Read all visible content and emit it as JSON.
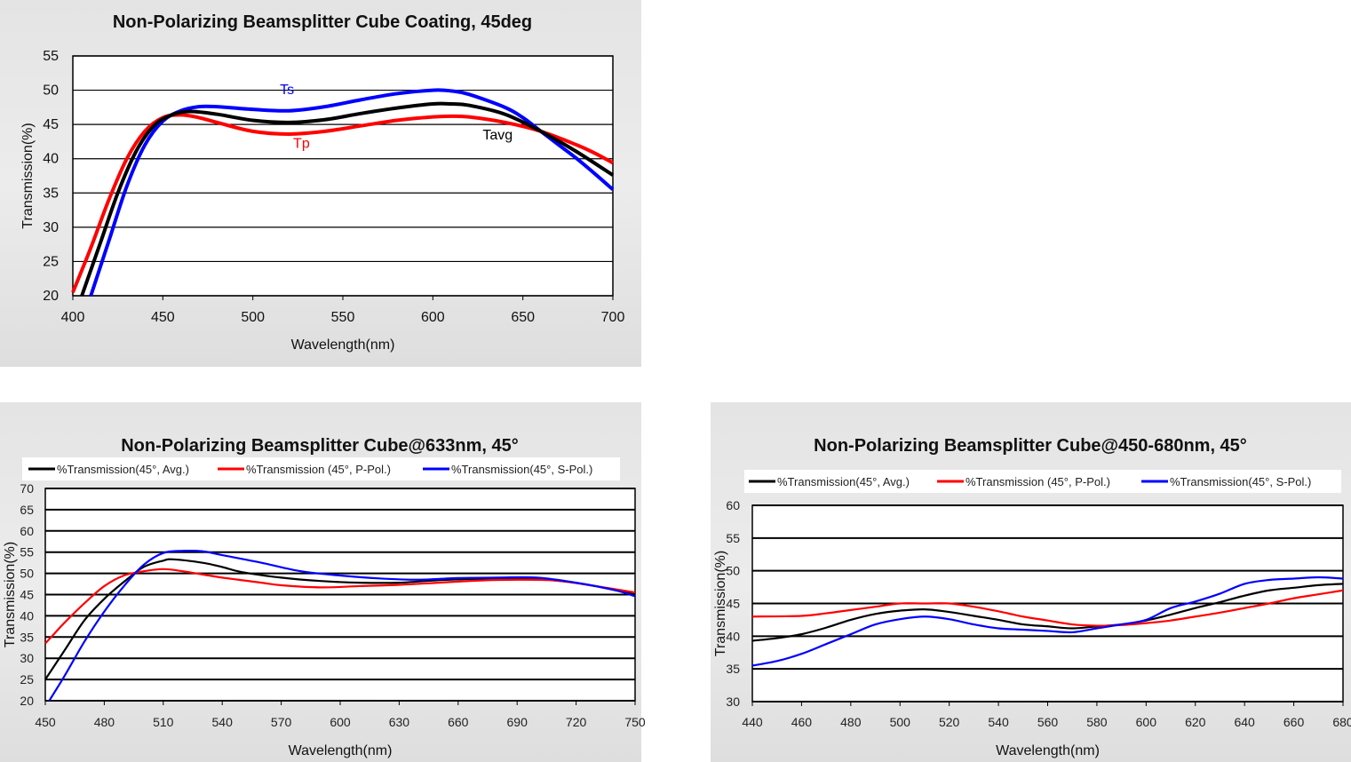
{
  "chart_data": [
    {
      "type": "line",
      "title": "Non-Polarizing Beamsplitter Cube Coating, 45deg",
      "xlabel": "Wavelength(nm)",
      "ylabel": "Transmission(%)",
      "xlim": [
        400,
        700
      ],
      "ylim": [
        20,
        55
      ],
      "xticks": [
        "400",
        "450",
        "500",
        "550",
        "600",
        "650",
        "700"
      ],
      "yticks": [
        "20",
        "25",
        "30",
        "35",
        "40",
        "45",
        "50",
        "55"
      ],
      "grid": "horizontal",
      "legend": "none",
      "series": [
        {
          "name": "Ts",
          "color": "#0000ff",
          "points": [
            [
              410,
              20
            ],
            [
              420,
              28
            ],
            [
              430,
              36
            ],
            [
              440,
              42
            ],
            [
              450,
              45.5
            ],
            [
              460,
              47
            ],
            [
              470,
              47.6
            ],
            [
              480,
              47.6
            ],
            [
              500,
              47.2
            ],
            [
              520,
              47
            ],
            [
              540,
              47.6
            ],
            [
              560,
              48.6
            ],
            [
              580,
              49.5
            ],
            [
              600,
              50
            ],
            [
              610,
              49.9
            ],
            [
              620,
              49.4
            ],
            [
              640,
              47.5
            ],
            [
              650,
              46
            ],
            [
              660,
              44
            ],
            [
              670,
              42
            ],
            [
              680,
              40
            ],
            [
              690,
              37.8
            ],
            [
              700,
              35.5
            ]
          ]
        },
        {
          "name": "Tp",
          "color": "#ff0000",
          "points": [
            [
              400,
              20.5
            ],
            [
              410,
              27
            ],
            [
              420,
              34
            ],
            [
              430,
              40
            ],
            [
              440,
              44
            ],
            [
              450,
              46
            ],
            [
              460,
              46.4
            ],
            [
              470,
              46
            ],
            [
              480,
              45.3
            ],
            [
              500,
              44
            ],
            [
              520,
              43.6
            ],
            [
              540,
              44
            ],
            [
              560,
              44.8
            ],
            [
              580,
              45.6
            ],
            [
              600,
              46.1
            ],
            [
              610,
              46.2
            ],
            [
              620,
              46.1
            ],
            [
              640,
              45.3
            ],
            [
              660,
              44
            ],
            [
              680,
              42
            ],
            [
              690,
              40.8
            ],
            [
              700,
              39.4
            ]
          ]
        },
        {
          "name": "Tavg",
          "color": "#000000",
          "points": [
            [
              405,
              20
            ],
            [
              415,
              27.5
            ],
            [
              425,
              35
            ],
            [
              435,
              41
            ],
            [
              445,
              44.8
            ],
            [
              455,
              46.4
            ],
            [
              465,
              46.9
            ],
            [
              480,
              46.5
            ],
            [
              500,
              45.6
            ],
            [
              520,
              45.3
            ],
            [
              540,
              45.7
            ],
            [
              560,
              46.6
            ],
            [
              580,
              47.4
            ],
            [
              600,
              48
            ],
            [
              610,
              48
            ],
            [
              620,
              47.8
            ],
            [
              640,
              46.5
            ],
            [
              660,
              44
            ],
            [
              680,
              41
            ],
            [
              700,
              37.6
            ]
          ]
        }
      ],
      "annotations": [
        {
          "text": "Ts",
          "x": 519,
          "y": 49.4,
          "color": "#0000ff"
        },
        {
          "text": "Tp",
          "x": 527,
          "y": 41.6,
          "color": "#ff0000"
        },
        {
          "text": "Tavg",
          "x": 636,
          "y": 42.8,
          "color": "#000000"
        }
      ]
    },
    {
      "type": "line",
      "title": "Non-Polarizing Beamsplitter Cube@633nm, 45°",
      "xlabel": "Wavelength(nm)",
      "ylabel": "Transmission(%)",
      "xlim": [
        450,
        750
      ],
      "ylim": [
        20,
        70
      ],
      "xticks": [
        "450",
        "480",
        "510",
        "540",
        "570",
        "600",
        "630",
        "660",
        "690",
        "720",
        "750"
      ],
      "yticks": [
        "20",
        "25",
        "30",
        "35",
        "40",
        "45",
        "50",
        "55",
        "60",
        "65",
        "70"
      ],
      "grid": "horizontal",
      "legend": "top",
      "series": [
        {
          "name": "%Transmission(45°, Avg.)",
          "color": "#000000",
          "points": [
            [
              450,
              25
            ],
            [
              460,
              32
            ],
            [
              470,
              39
            ],
            [
              480,
              44
            ],
            [
              490,
              48
            ],
            [
              500,
              51.5
            ],
            [
              510,
              53
            ],
            [
              515,
              53.3
            ],
            [
              530,
              52.5
            ],
            [
              540,
              51.5
            ],
            [
              550,
              50.3
            ],
            [
              570,
              49
            ],
            [
              590,
              48.2
            ],
            [
              610,
              47.8
            ],
            [
              630,
              47.8
            ],
            [
              650,
              48.4
            ],
            [
              670,
              48.7
            ],
            [
              690,
              48.8
            ],
            [
              710,
              48.3
            ],
            [
              730,
              47
            ],
            [
              750,
              45
            ]
          ]
        },
        {
          "name": "%Transmission (45°, P-Pol.)",
          "color": "#ff0000",
          "points": [
            [
              450,
              33.5
            ],
            [
              455,
              36
            ],
            [
              460,
              38.5
            ],
            [
              470,
              43
            ],
            [
              480,
              47
            ],
            [
              490,
              49.5
            ],
            [
              500,
              50.5
            ],
            [
              510,
              51
            ],
            [
              520,
              50.5
            ],
            [
              540,
              49
            ],
            [
              560,
              47.8
            ],
            [
              570,
              47.2
            ],
            [
              590,
              46.7
            ],
            [
              610,
              47
            ],
            [
              630,
              47.3
            ],
            [
              650,
              47.8
            ],
            [
              670,
              48.3
            ],
            [
              690,
              48.5
            ],
            [
              710,
              48.3
            ],
            [
              730,
              47
            ],
            [
              750,
              45.5
            ]
          ]
        },
        {
          "name": "%Transmission(45°, S-Pol.)",
          "color": "#0000ff",
          "points": [
            [
              452,
              20
            ],
            [
              460,
              26
            ],
            [
              470,
              34
            ],
            [
              480,
              41
            ],
            [
              490,
              47
            ],
            [
              500,
              52
            ],
            [
              510,
              54.8
            ],
            [
              520,
              55.3
            ],
            [
              530,
              55.2
            ],
            [
              540,
              54.3
            ],
            [
              560,
              52.5
            ],
            [
              580,
              50.5
            ],
            [
              600,
              49.5
            ],
            [
              620,
              48.8
            ],
            [
              640,
              48.5
            ],
            [
              660,
              48.9
            ],
            [
              680,
              49
            ],
            [
              700,
              49
            ],
            [
              720,
              47.8
            ],
            [
              740,
              46
            ],
            [
              750,
              44.6
            ]
          ]
        }
      ]
    },
    {
      "type": "line",
      "title": "Non-Polarizing Beamsplitter Cube@450-680nm, 45°",
      "xlabel": "Wavelength(nm)",
      "ylabel": "Transmission(%)",
      "xlim": [
        440,
        680
      ],
      "ylim": [
        30,
        60
      ],
      "xticks": [
        "440",
        "460",
        "480",
        "500",
        "520",
        "540",
        "560",
        "580",
        "600",
        "620",
        "640",
        "660",
        "680"
      ],
      "yticks": [
        "30",
        "35",
        "40",
        "45",
        "50",
        "55",
        "60"
      ],
      "grid": "horizontal",
      "legend": "top",
      "series": [
        {
          "name": "%Transmission(45°, Avg.)",
          "color": "#000000",
          "points": [
            [
              440,
              39.3
            ],
            [
              450,
              39.7
            ],
            [
              460,
              40.3
            ],
            [
              470,
              41.3
            ],
            [
              480,
              42.5
            ],
            [
              490,
              43.4
            ],
            [
              500,
              43.9
            ],
            [
              510,
              44.1
            ],
            [
              520,
              43.7
            ],
            [
              530,
              43.1
            ],
            [
              540,
              42.5
            ],
            [
              550,
              41.8
            ],
            [
              560,
              41.5
            ],
            [
              570,
              41.2
            ],
            [
              580,
              41.5
            ],
            [
              590,
              41.8
            ],
            [
              600,
              42.4
            ],
            [
              610,
              43.3
            ],
            [
              620,
              44.3
            ],
            [
              630,
              45.2
            ],
            [
              640,
              46.2
            ],
            [
              650,
              47
            ],
            [
              660,
              47.4
            ],
            [
              670,
              47.8
            ],
            [
              680,
              48
            ]
          ]
        },
        {
          "name": "%Transmission (45°, P-Pol.)",
          "color": "#ff0000",
          "points": [
            [
              440,
              43
            ],
            [
              460,
              43.1
            ],
            [
              470,
              43.5
            ],
            [
              480,
              44
            ],
            [
              490,
              44.5
            ],
            [
              500,
              45
            ],
            [
              510,
              45
            ],
            [
              520,
              45
            ],
            [
              530,
              44.5
            ],
            [
              540,
              43.8
            ],
            [
              550,
              43
            ],
            [
              560,
              42.4
            ],
            [
              570,
              41.8
            ],
            [
              580,
              41.6
            ],
            [
              590,
              41.7
            ],
            [
              600,
              42
            ],
            [
              610,
              42.4
            ],
            [
              620,
              43
            ],
            [
              630,
              43.6
            ],
            [
              640,
              44.3
            ],
            [
              650,
              45
            ],
            [
              660,
              45.8
            ],
            [
              670,
              46.4
            ],
            [
              680,
              47
            ]
          ]
        },
        {
          "name": "%Transmission(45°, S-Pol.)",
          "color": "#0000ff",
          "points": [
            [
              440,
              35.5
            ],
            [
              450,
              36.2
            ],
            [
              460,
              37.3
            ],
            [
              470,
              38.8
            ],
            [
              480,
              40.3
            ],
            [
              490,
              41.8
            ],
            [
              500,
              42.6
            ],
            [
              510,
              43
            ],
            [
              520,
              42.6
            ],
            [
              530,
              41.8
            ],
            [
              540,
              41.2
            ],
            [
              550,
              41
            ],
            [
              560,
              40.8
            ],
            [
              570,
              40.6
            ],
            [
              580,
              41.2
            ],
            [
              590,
              41.8
            ],
            [
              600,
              42.5
            ],
            [
              610,
              44.3
            ],
            [
              620,
              45.3
            ],
            [
              630,
              46.5
            ],
            [
              640,
              48
            ],
            [
              650,
              48.6
            ],
            [
              660,
              48.8
            ],
            [
              670,
              49
            ],
            [
              680,
              48.8
            ]
          ]
        }
      ]
    }
  ]
}
